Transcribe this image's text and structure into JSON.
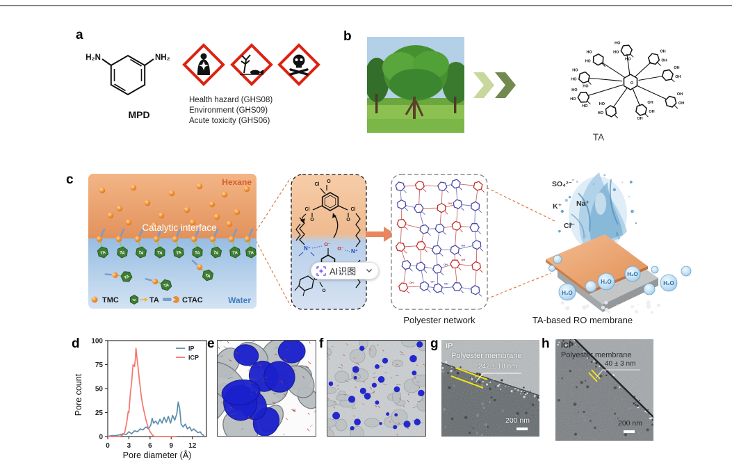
{
  "panels": {
    "a": "a",
    "b": "b",
    "c": "c",
    "d": "d",
    "e": "e",
    "f": "f",
    "g": "g",
    "h": "h"
  },
  "panel_a": {
    "molecule_label": "MPD",
    "amine_left": "H₂N",
    "amine_right": "NH₂",
    "hazard_lines": [
      "Health hazard (GHS08)",
      "Environment (GHS09)",
      "Acute toxicity (GHS06)"
    ],
    "ghs_red": "#dd2211"
  },
  "panel_b": {
    "ta_label": "TA",
    "ho": "HO",
    "oh": "OH",
    "chevron_light": "#c8d79c",
    "chevron_dark": "#72894f"
  },
  "panel_c": {
    "hexane_label": "Hexane",
    "water_label": "Water",
    "interface_label": "Catalytic interface",
    "legend": {
      "tmc": "TMC",
      "ta": "TA",
      "ctac": "CTAC"
    },
    "chem": {
      "cl": "Cl",
      "o": "O",
      "o_minus": "O⁻",
      "n_plus": "N⁺"
    },
    "ai_overlay": {
      "label": "AI识图"
    },
    "polyester_caption": "Polyester network",
    "membrane_caption": "TA-based RO membrane",
    "ions": {
      "sulfate": "SO₄²⁻",
      "potassium": "K⁺",
      "sodium": "Na⁺",
      "chloride": "Cl⁻"
    },
    "h2o": "H₂O",
    "colors": {
      "hexane_text": "#d45f28",
      "water_text": "#3f7fc1",
      "tmc_orange": "#e8872e",
      "ta_green": "#3f7d35",
      "ctac_blue": "#7b9bc9",
      "arrow_orange": "#e8875f"
    }
  },
  "chart_data": {
    "type": "line",
    "title": "",
    "xlabel": "Pore diameter (Å)",
    "ylabel": "Pore count",
    "xlim": [
      0,
      14
    ],
    "ylim": [
      0,
      100
    ],
    "xticks": [
      0,
      3,
      6,
      9,
      12
    ],
    "yticks": [
      0,
      25,
      50,
      75,
      100
    ],
    "grid": false,
    "legend_position": "top-right",
    "series": [
      {
        "name": "IP",
        "color": "#5d8cab",
        "points": [
          [
            0,
            0
          ],
          [
            0.6,
            1
          ],
          [
            1.2,
            1
          ],
          [
            1.8,
            2
          ],
          [
            2.2,
            3
          ],
          [
            2.6,
            2
          ],
          [
            3,
            5
          ],
          [
            3.4,
            3
          ],
          [
            3.8,
            6
          ],
          [
            4.2,
            5
          ],
          [
            4.6,
            8
          ],
          [
            5,
            7
          ],
          [
            5.4,
            10
          ],
          [
            5.8,
            8
          ],
          [
            6.1,
            12
          ],
          [
            6.3,
            19
          ],
          [
            6.5,
            14
          ],
          [
            6.8,
            16
          ],
          [
            7.1,
            13
          ],
          [
            7.4,
            18
          ],
          [
            7.7,
            14
          ],
          [
            8,
            20
          ],
          [
            8.3,
            15
          ],
          [
            8.6,
            21
          ],
          [
            8.9,
            14
          ],
          [
            9.2,
            22
          ],
          [
            9.5,
            17
          ],
          [
            9.8,
            24
          ],
          [
            10,
            36
          ],
          [
            10.2,
            29
          ],
          [
            10.4,
            13
          ],
          [
            10.7,
            10
          ],
          [
            11,
            13
          ],
          [
            11.3,
            8
          ],
          [
            11.6,
            10
          ],
          [
            11.9,
            6
          ],
          [
            12.2,
            8
          ],
          [
            12.5,
            6
          ],
          [
            12.8,
            4
          ],
          [
            13.1,
            5
          ],
          [
            13.4,
            2
          ],
          [
            13.7,
            1
          ]
        ]
      },
      {
        "name": "ICP",
        "color": "#f3766e",
        "points": [
          [
            0,
            0
          ],
          [
            1.6,
            0
          ],
          [
            2,
            1
          ],
          [
            2.4,
            4
          ],
          [
            2.7,
            15
          ],
          [
            2.9,
            26
          ],
          [
            3,
            25
          ],
          [
            3.2,
            45
          ],
          [
            3.4,
            57
          ],
          [
            3.5,
            68
          ],
          [
            3.6,
            75
          ],
          [
            3.8,
            73
          ],
          [
            3.9,
            80
          ],
          [
            4,
            92
          ],
          [
            4.1,
            85
          ],
          [
            4.3,
            72
          ],
          [
            4.5,
            58
          ],
          [
            4.7,
            45
          ],
          [
            4.9,
            35
          ],
          [
            5.1,
            28
          ],
          [
            5.4,
            18
          ],
          [
            5.7,
            10
          ],
          [
            6,
            5
          ],
          [
            6.3,
            2
          ],
          [
            6.6,
            0
          ],
          [
            8,
            0
          ],
          [
            9.8,
            0
          ]
        ]
      }
    ]
  },
  "panel_g": {
    "tag": "IP",
    "membrane_label": "Polyester membrane",
    "thickness": "242 ± 18 nm",
    "scale_bar": "200 nm"
  },
  "panel_h": {
    "tag": "ICP",
    "membrane_label": "Polyester membrane",
    "thickness": "40 ± 3 nm",
    "scale_bar": "200 nm"
  }
}
